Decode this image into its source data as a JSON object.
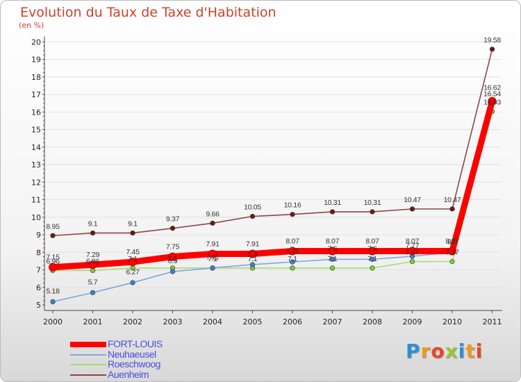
{
  "chart_data": {
    "type": "line",
    "title": "Evolution du Taux de Taxe d'Habitation",
    "ylabel": "(en %)",
    "categories": [
      "2000",
      "2001",
      "2002",
      "2003",
      "2004",
      "2005",
      "2006",
      "2007",
      "2008",
      "2009",
      "2010",
      "2011"
    ],
    "ylim": [
      5,
      20
    ],
    "yticks": [
      "5",
      "6",
      "7",
      "8",
      "9",
      "10",
      "11",
      "12",
      "13",
      "14",
      "15",
      "16",
      "17",
      "18",
      "19",
      "20"
    ],
    "series": [
      {
        "name": "FORT-LOUIS",
        "color": "#ff0000",
        "values": [
          7.15,
          7.29,
          7.45,
          7.75,
          7.91,
          7.91,
          8.07,
          8.07,
          8.07,
          8.07,
          8.07,
          16.62
        ],
        "labels": [
          "7.15",
          "7.29",
          "7.45",
          "7.75",
          "7.91",
          "7.91",
          "8.07",
          "8.07",
          "8.07",
          "8.07",
          "8.07",
          "16.62"
        ]
      },
      {
        "name": "Neuhaeusel",
        "color": "#3d7fd8",
        "line_color": "#7fa6d6",
        "values": [
          5.18,
          5.7,
          6.27,
          6.9,
          7.11,
          7.3,
          7.45,
          7.6,
          7.6,
          7.77,
          8.0,
          16.54
        ],
        "labels": [
          "5.18",
          "5.7",
          "6.27",
          "6.9",
          "7.11",
          "7.3",
          "7.45",
          "7.6",
          "7.6",
          "7.77",
          "8.0",
          "16.54"
        ]
      },
      {
        "name": "Roeschwoog",
        "color": "#7ecb3a",
        "line_color": "#a6dc78",
        "values": [
          6.96,
          6.96,
          7.1,
          7.1,
          7.1,
          7.1,
          7.1,
          7.1,
          7.1,
          7.47,
          7.47,
          16.03
        ],
        "labels": [
          "6.96",
          "6.96",
          "7.1",
          "7.1",
          "7.1",
          "7.1",
          "7.1",
          "7.1",
          "7.1",
          "7.47",
          "7.47",
          "16.03"
        ]
      },
      {
        "name": "Auenheim",
        "color": "#6b1a1a",
        "line_color": "#8a4646",
        "values": [
          8.95,
          9.1,
          9.1,
          9.37,
          9.66,
          10.05,
          10.16,
          10.31,
          10.31,
          10.47,
          10.47,
          19.58
        ],
        "labels": [
          "8.95",
          "9.1",
          "9.1",
          "9.37",
          "9.66",
          "10.05",
          "10.16",
          "10.31",
          "10.31",
          "10.47",
          "10.47",
          "19.58"
        ]
      }
    ]
  },
  "logo": {
    "letters": [
      "P",
      "r",
      "o",
      "x",
      "i",
      "t",
      "i"
    ],
    "colors": [
      "#2d8fd6",
      "#ee9a23",
      "#e8452a",
      "#9ac43a",
      "#2d8fd6",
      "#ee9a23",
      "#e8452a"
    ]
  }
}
